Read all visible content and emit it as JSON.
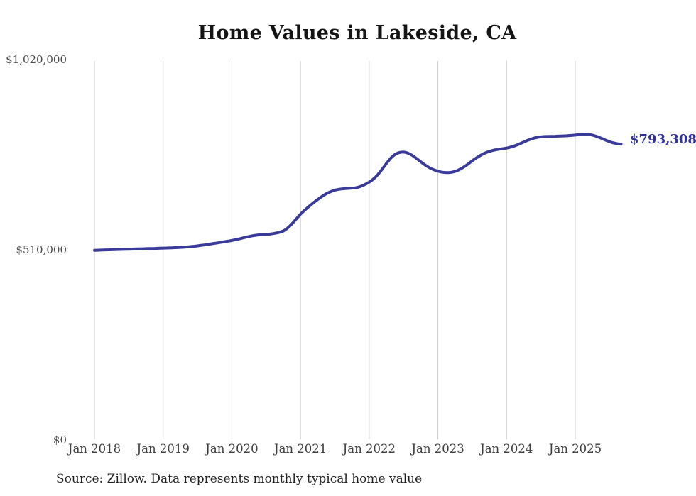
{
  "title": "Home Values in Lakeside, CA",
  "latest_value_label": "$793,308",
  "source_note": "Source: Zillow. Data represents monthly typical home value",
  "colors": {
    "line": "#3a3a9a",
    "latest_label": "#31319b",
    "grid": "#cccccc",
    "title_text": "#141414",
    "axis_text": "#4a4a4a",
    "source_text": "#1f1f1f",
    "background": "#ffffff"
  },
  "chart_data": {
    "type": "line",
    "title": "Home Values in Lakeside, CA",
    "unit": "USD",
    "frequency": "monthly",
    "x_start": "Jan 2018",
    "x_end": "Sep 2025",
    "x_ticks": [
      "Jan 2018",
      "Jan 2019",
      "Jan 2020",
      "Jan 2021",
      "Jan 2022",
      "Jan 2023",
      "Jan 2024",
      "Jan 2025"
    ],
    "y_ticks": [
      {
        "label": "$1,020,000",
        "value": 1020000
      },
      {
        "label": "$510,000",
        "value": 510000
      },
      {
        "label": "$0",
        "value": 0
      }
    ],
    "ylim": [
      0,
      1020000
    ],
    "grid": "vertical-only",
    "legend": "none",
    "series": [
      {
        "name": "Typical home value",
        "latest_value": 793308,
        "values": [
          508500,
          509200,
          509800,
          510300,
          510800,
          511200,
          511600,
          512000,
          512400,
          512900,
          513400,
          514000,
          514600,
          515100,
          515600,
          516300,
          517300,
          518700,
          520500,
          522600,
          524900,
          527300,
          529800,
          532300,
          534800,
          538100,
          541900,
          545700,
          548800,
          550500,
          551300,
          552600,
          555600,
          559500,
          571000,
          588000,
          606000,
          620000,
          633000,
          645000,
          656000,
          664500,
          670000,
          673000,
          674500,
          675000,
          677000,
          683000,
          691000,
          702500,
          720000,
          742000,
          760000,
          770500,
          772500,
          768500,
          758000,
          746000,
          734500,
          726000,
          720500,
          717200,
          716800,
          719500,
          726500,
          736500,
          748500,
          759500,
          768000,
          774000,
          778000,
          780500,
          782500,
          786500,
          792000,
          799000,
          805500,
          810500,
          813000,
          814000,
          814200,
          814500,
          815200,
          816200,
          817500,
          819300,
          820000,
          817800,
          812500,
          806000,
          799500,
          795000,
          793308
        ]
      }
    ]
  }
}
